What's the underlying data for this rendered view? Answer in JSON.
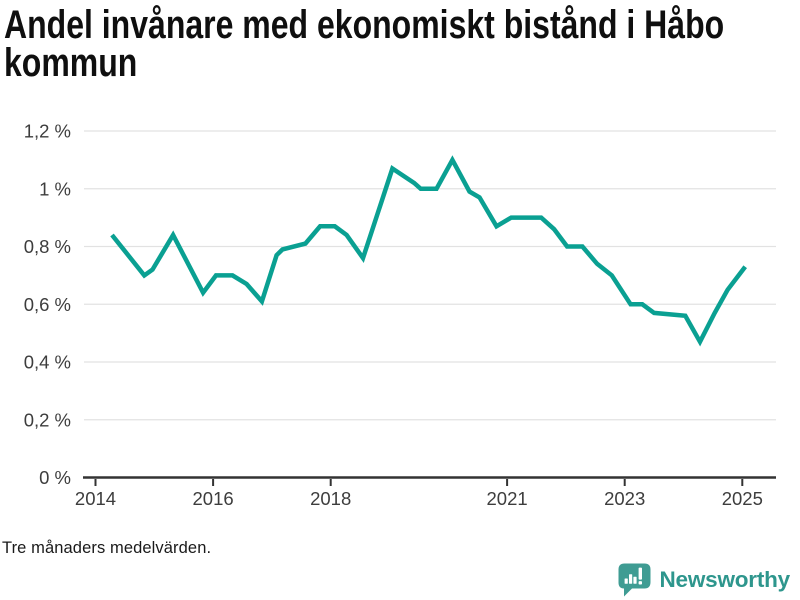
{
  "title_lines": [
    "Andel invånare med ekonomiskt bistånd i Håbo",
    "kommun"
  ],
  "footnote": "Tre månaders medelvärden.",
  "branding": {
    "logo_text": "Newsworthy",
    "logo_icon": "bar-chart-speech-bubble-icon",
    "icon_color": "#3f9c93",
    "text_color": "#2e968d"
  },
  "colors": {
    "line": "#0aa092",
    "grid": "#e2e2e2",
    "axis": "#333333",
    "tick_text": "#3d3d3d",
    "title": "#0f0f0f",
    "background": "#ffffff"
  },
  "chart_data": {
    "type": "line",
    "title": "Andel invånare med ekonomiskt bistånd i Håbo kommun",
    "subtitle_note": "Tre månaders medelvärden.",
    "unit": "%",
    "decimal_separator": ",",
    "grid": "horizontal",
    "legend": "none",
    "xlim": [
      2013.8,
      2025.55
    ],
    "ylim": [
      0,
      1.2
    ],
    "y_ticks": [
      {
        "value": 0,
        "label": "0 %"
      },
      {
        "value": 0.2,
        "label": "0,2 %"
      },
      {
        "value": 0.4,
        "label": "0,4 %"
      },
      {
        "value": 0.6,
        "label": "0,6 %"
      },
      {
        "value": 0.8,
        "label": "0,8 %"
      },
      {
        "value": 1.0,
        "label": "1 %"
      },
      {
        "value": 1.2,
        "label": "1,2 %"
      }
    ],
    "x_ticks": [
      {
        "value": 2014,
        "label": "2014"
      },
      {
        "value": 2016,
        "label": "2016"
      },
      {
        "value": 2018,
        "label": "2018"
      },
      {
        "value": 2021,
        "label": "2021"
      },
      {
        "value": 2023,
        "label": "2023"
      },
      {
        "value": 2025,
        "label": "2025"
      }
    ],
    "series": [
      {
        "name": "Andel invånare med ekonomiskt bistånd",
        "points": [
          [
            2014.28,
            0.84
          ],
          [
            2014.83,
            0.7
          ],
          [
            2014.97,
            0.72
          ],
          [
            2015.32,
            0.84
          ],
          [
            2015.83,
            0.64
          ],
          [
            2016.05,
            0.7
          ],
          [
            2016.33,
            0.7
          ],
          [
            2016.57,
            0.67
          ],
          [
            2016.83,
            0.61
          ],
          [
            2017.08,
            0.77
          ],
          [
            2017.18,
            0.79
          ],
          [
            2017.57,
            0.81
          ],
          [
            2017.82,
            0.87
          ],
          [
            2018.07,
            0.87
          ],
          [
            2018.27,
            0.84
          ],
          [
            2018.55,
            0.76
          ],
          [
            2019.05,
            1.07
          ],
          [
            2019.42,
            1.02
          ],
          [
            2019.53,
            1.0
          ],
          [
            2019.8,
            1.0
          ],
          [
            2020.07,
            1.1
          ],
          [
            2020.36,
            0.99
          ],
          [
            2020.53,
            0.97
          ],
          [
            2020.82,
            0.87
          ],
          [
            2021.07,
            0.9
          ],
          [
            2021.58,
            0.9
          ],
          [
            2021.8,
            0.86
          ],
          [
            2022.02,
            0.8
          ],
          [
            2022.28,
            0.8
          ],
          [
            2022.53,
            0.74
          ],
          [
            2022.78,
            0.7
          ],
          [
            2023.1,
            0.6
          ],
          [
            2023.3,
            0.6
          ],
          [
            2023.5,
            0.57
          ],
          [
            2024.03,
            0.56
          ],
          [
            2024.28,
            0.47
          ],
          [
            2024.53,
            0.57
          ],
          [
            2024.75,
            0.65
          ],
          [
            2025.05,
            0.73
          ]
        ]
      }
    ]
  }
}
